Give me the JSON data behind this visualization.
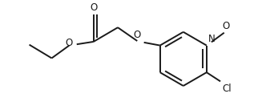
{
  "bg_color": "#ffffff",
  "line_color": "#1a1a1a",
  "line_width": 1.4,
  "font_size": 8.5,
  "figsize": [
    3.27,
    1.37
  ],
  "dpi": 100,
  "xlim": [
    0.0,
    6.5
  ],
  "ylim": [
    0.0,
    2.8
  ]
}
